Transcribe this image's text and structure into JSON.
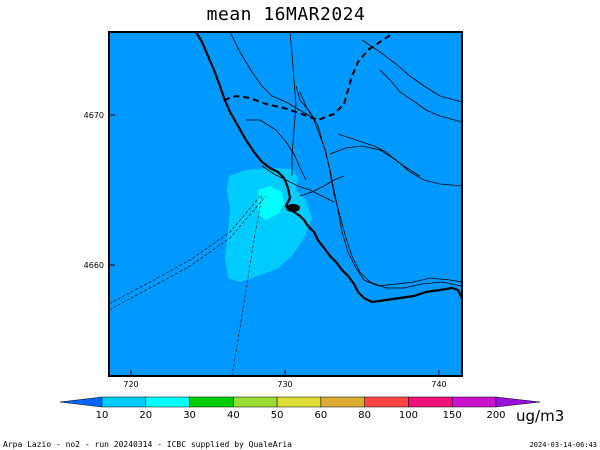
{
  "title": "mean 16MAR2024",
  "map": {
    "background_color": "#0099ff",
    "plume_colors": {
      "level1": "#00ccff",
      "level2": "#00ffff"
    },
    "x_ticks": [
      "720",
      "730",
      "740"
    ],
    "y_ticks": [
      "4670",
      "4660"
    ]
  },
  "colorbar": {
    "labels": [
      "10",
      "20",
      "30",
      "40",
      "50",
      "60",
      "80",
      "100",
      "150",
      "200"
    ],
    "colors": [
      "#0066ff",
      "#00ccff",
      "#00ffff",
      "#00cc00",
      "#99dd33",
      "#dddd33",
      "#ddaa33",
      "#ff4444",
      "#ee1177",
      "#cc11cc",
      "#9911dd"
    ],
    "units": "ug/m3"
  },
  "footer": {
    "left": "Arpa Lazio - no2 - run 20240314 - ICBC supplied by QualeAria",
    "right": "2024-03-14-06:43"
  }
}
